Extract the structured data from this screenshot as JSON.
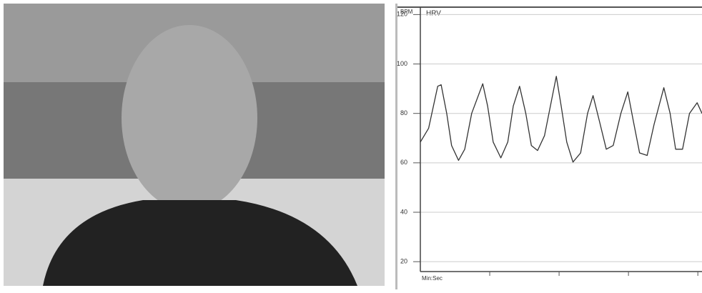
{
  "chart_data": {
    "type": "line",
    "title": "HRV",
    "y_label": "BPM",
    "x_label": "Min:Sec",
    "x": [
      0,
      0.12,
      0.25,
      0.3,
      0.38,
      0.45,
      0.55,
      0.64,
      0.74,
      0.9,
      0.97,
      1.05,
      1.16,
      1.26,
      1.34,
      1.43,
      1.52,
      1.6,
      1.69,
      1.79,
      1.96,
      2.03,
      2.11,
      2.2,
      2.31,
      2.41,
      2.49,
      2.58,
      2.68,
      2.78,
      2.89,
      2.99,
      3.07,
      3.16,
      3.27,
      3.37,
      3.51,
      3.6,
      3.68,
      3.78,
      3.88,
      3.99,
      4.06
    ],
    "series": [
      {
        "name": "HRV",
        "color": "#333333",
        "values": [
          68.4,
          74,
          91,
          91.6,
          80,
          67,
          61,
          65.5,
          80,
          92,
          83,
          68.4,
          62,
          68.4,
          83,
          91,
          80,
          67,
          65,
          71,
          95,
          83,
          68.4,
          60.3,
          64,
          80,
          87.2,
          77,
          65.5,
          67,
          80,
          88.7,
          77,
          64,
          63,
          75.6,
          90.4,
          80,
          65.5,
          65.5,
          80,
          84.3,
          80
        ]
      }
    ],
    "xlim": [
      0,
      4.06
    ],
    "xticks": [
      1,
      2,
      3,
      4
    ],
    "ylim": [
      16,
      123
    ],
    "yticks": [
      20,
      40,
      60,
      80,
      100,
      120
    ],
    "grid": true
  }
}
